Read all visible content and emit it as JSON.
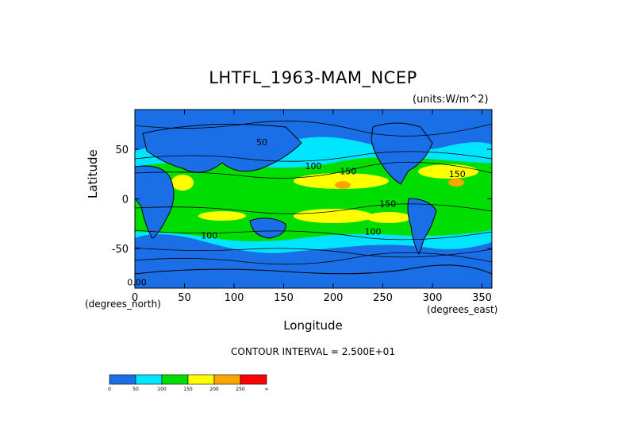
{
  "chart_data": {
    "type": "heatmap",
    "title": "LHTFL_1963-MAM_NCEP",
    "units_label": "(units:W/m^2)",
    "xlabel": "Longitude",
    "ylabel": "Latitude",
    "x_units": "(degrees_north)",
    "y_units": "(degrees_east)",
    "xlim": [
      0,
      360
    ],
    "ylim": [
      -90,
      90
    ],
    "x_ticks": [
      0,
      50,
      100,
      150,
      200,
      250,
      300,
      350
    ],
    "y_ticks": [
      -50,
      0,
      50
    ],
    "contour_interval_text": "CONTOUR INTERVAL = 2.500E+01",
    "colorbar": {
      "labels": [
        "0",
        "50",
        "100",
        "150",
        "200",
        "250",
        "∞"
      ],
      "colors": [
        "#1a6fe6",
        "#00e5ff",
        "#00dd00",
        "#ffff00",
        "#ffa500",
        "#ff0000"
      ]
    },
    "contour_labels": [
      {
        "text": "50",
        "lon": 128,
        "lat": 54
      },
      {
        "text": "100",
        "lon": 180,
        "lat": 30
      },
      {
        "text": "150",
        "lon": 215,
        "lat": 25
      },
      {
        "text": "150",
        "lon": 325,
        "lat": 22
      },
      {
        "text": "150",
        "lon": 255,
        "lat": -8
      },
      {
        "text": "100",
        "lon": 240,
        "lat": -36
      },
      {
        "text": "100",
        "lon": 75,
        "lat": -40
      },
      {
        "text": "0.00",
        "lon": 2,
        "lat": -87
      }
    ]
  }
}
